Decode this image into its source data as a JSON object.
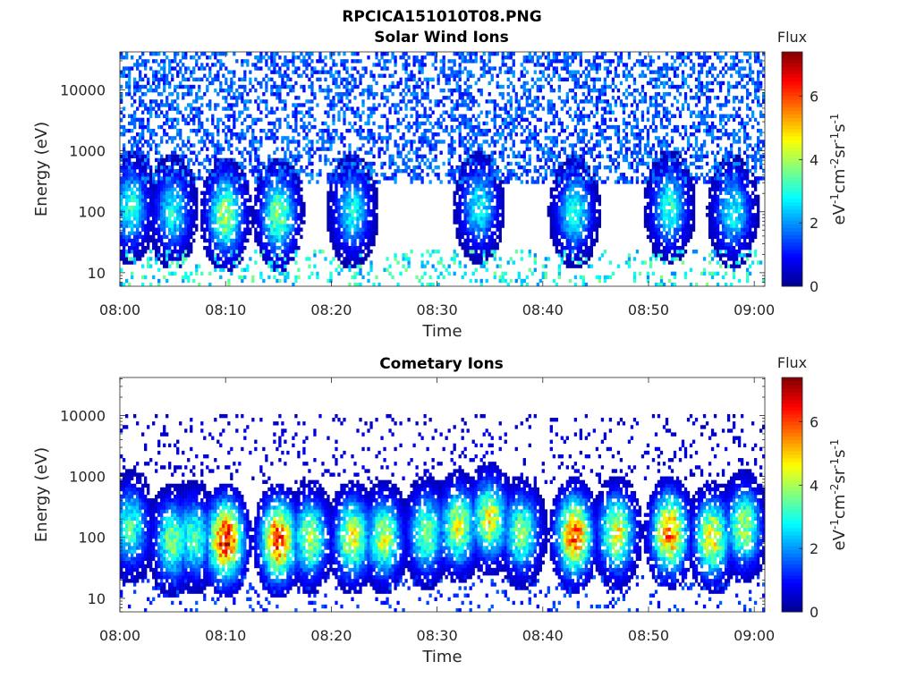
{
  "figure": {
    "title": "RPCICA151010T08.PNG"
  },
  "chart_data": [
    {
      "type": "heatmap",
      "title": "Solar Wind Ions",
      "xlabel": "Time",
      "ylabel": "Energy (eV)",
      "x_ticks": [
        "08:00",
        "08:10",
        "08:20",
        "08:30",
        "08:40",
        "08:50",
        "09:00"
      ],
      "x_range": [
        "08:00",
        "09:01"
      ],
      "y_scale": "log",
      "y_ticks": [
        "10",
        "100",
        "1000",
        "10000"
      ],
      "y_range": [
        6,
        42000
      ],
      "colorbar": {
        "label": "Flux",
        "units": "eV-1cm-2sr-1s-1",
        "range": [
          0,
          7.4
        ],
        "ticks": [
          "0",
          "2",
          "4",
          "6"
        ],
        "colormap": [
          "#00008f",
          "#0000ff",
          "#0080ff",
          "#00ffff",
          "#80ff80",
          "#ffff00",
          "#ff8000",
          "#ff0000",
          "#800000"
        ]
      },
      "features": {
        "background_energy_band_eV": [
          300,
          40000
        ],
        "background_flux": 1.8,
        "bursts": [
          {
            "time": "08:01",
            "energy_eV": 120,
            "peak_flux": 3.2
          },
          {
            "time": "08:05",
            "energy_eV": 100,
            "peak_flux": 3.0
          },
          {
            "time": "08:10",
            "energy_eV": 90,
            "peak_flux": 4.2
          },
          {
            "time": "08:15",
            "energy_eV": 90,
            "peak_flux": 4.0
          },
          {
            "time": "08:22",
            "energy_eV": 100,
            "peak_flux": 3.0
          },
          {
            "time": "08:34",
            "energy_eV": 120,
            "peak_flux": 3.0
          },
          {
            "time": "08:43",
            "energy_eV": 100,
            "peak_flux": 3.2
          },
          {
            "time": "08:52",
            "energy_eV": 120,
            "peak_flux": 3.2
          },
          {
            "time": "08:58",
            "energy_eV": 100,
            "peak_flux": 3.0
          }
        ]
      }
    },
    {
      "type": "heatmap",
      "title": "Cometary Ions",
      "xlabel": "Time",
      "ylabel": "Energy (eV)",
      "x_ticks": [
        "08:00",
        "08:10",
        "08:20",
        "08:30",
        "08:40",
        "08:50",
        "09:00"
      ],
      "x_range": [
        "08:00",
        "09:01"
      ],
      "y_scale": "log",
      "y_ticks": [
        "10",
        "100",
        "1000",
        "10000"
      ],
      "y_range": [
        6,
        42000
      ],
      "colorbar": {
        "label": "Flux",
        "units": "eV-1cm-2sr-1s-1",
        "range": [
          0,
          7.4
        ],
        "ticks": [
          "0",
          "2",
          "4",
          "6"
        ],
        "colormap": [
          "#00008f",
          "#0000ff",
          "#0080ff",
          "#00ffff",
          "#80ff80",
          "#ffff00",
          "#ff8000",
          "#ff0000",
          "#800000"
        ]
      },
      "features": {
        "background_energy_band_eV": [
          800,
          10000
        ],
        "background_flux": 0.7,
        "bursts": [
          {
            "time": "08:01",
            "energy_eV": 150,
            "peak_flux": 3.5
          },
          {
            "time": "08:05",
            "energy_eV": 90,
            "peak_flux": 4.0
          },
          {
            "time": "08:07",
            "energy_eV": 100,
            "peak_flux": 3.6
          },
          {
            "time": "08:10",
            "energy_eV": 90,
            "peak_flux": 6.8
          },
          {
            "time": "08:15",
            "energy_eV": 90,
            "peak_flux": 6.5
          },
          {
            "time": "08:18",
            "energy_eV": 100,
            "peak_flux": 4.2
          },
          {
            "time": "08:22",
            "energy_eV": 100,
            "peak_flux": 4.8
          },
          {
            "time": "08:25",
            "energy_eV": 100,
            "peak_flux": 4.5
          },
          {
            "time": "08:29",
            "energy_eV": 120,
            "peak_flux": 4.0
          },
          {
            "time": "08:32",
            "energy_eV": 150,
            "peak_flux": 4.6
          },
          {
            "time": "08:35",
            "energy_eV": 200,
            "peak_flux": 4.8
          },
          {
            "time": "08:38",
            "energy_eV": 120,
            "peak_flux": 4.0
          },
          {
            "time": "08:43",
            "energy_eV": 110,
            "peak_flux": 6.2
          },
          {
            "time": "08:47",
            "energy_eV": 120,
            "peak_flux": 4.8
          },
          {
            "time": "08:52",
            "energy_eV": 120,
            "peak_flux": 6.0
          },
          {
            "time": "08:56",
            "energy_eV": 100,
            "peak_flux": 5.0
          },
          {
            "time": "08:59",
            "energy_eV": 150,
            "peak_flux": 4.2
          }
        ]
      }
    }
  ]
}
